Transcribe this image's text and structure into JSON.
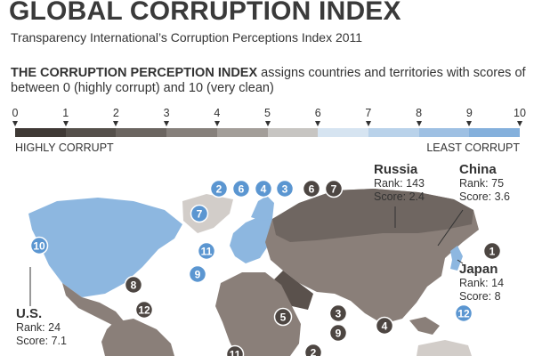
{
  "title": "GLOBAL CORRUPTION INDEX",
  "subtitle": "Transparency International’s Corruption Perceptions Index 2011",
  "intro": {
    "bold": "THE CORRUPTION PERCEPTION INDEX",
    "text": " assigns countries and territories with scores of between 0 (highly corrupt) and 10 (very clean)"
  },
  "scale": {
    "labels": [
      "0",
      "1",
      "2",
      "3",
      "4",
      "5",
      "6",
      "7",
      "8",
      "9",
      "10"
    ],
    "colors": [
      "#3f3935",
      "#55504b",
      "#6b6560",
      "#86807b",
      "#a39e99",
      "#c7c5c2",
      "#d6e4f1",
      "#b9d2ea",
      "#9ec0e3",
      "#84b0dc",
      "#6a9fd3"
    ],
    "left_label": "HIGHLY CORRUPT",
    "right_label": "LEAST CORRUPT"
  },
  "colors": {
    "ocean": "#ffffff",
    "corrupt_land": "#8a7f79",
    "dark_land": "#5a514c",
    "clean_land": "#8db7e0",
    "mid_land": "#d2cdc9",
    "badge_dark": "#4d4642",
    "badge_light": "#5b96d1"
  },
  "countries": [
    {
      "name": "Russia",
      "rank": "Rank: 143",
      "score": "Score: 2.4"
    },
    {
      "name": "China",
      "rank": "Rank: 75",
      "score": "Score: 3.6"
    },
    {
      "name": "Japan",
      "rank": "Rank: 14",
      "score": "Score: 8"
    },
    {
      "name": "U.S.",
      "rank": "Rank: 24",
      "score": "Score: 7.1"
    }
  ],
  "badges": {
    "light": [
      "2",
      "6",
      "4",
      "3",
      "7",
      "10",
      "11",
      "9",
      "12"
    ],
    "dark": [
      "6",
      "7",
      "1",
      "8",
      "12",
      "5",
      "9",
      "3",
      "4",
      "11",
      "2"
    ]
  }
}
